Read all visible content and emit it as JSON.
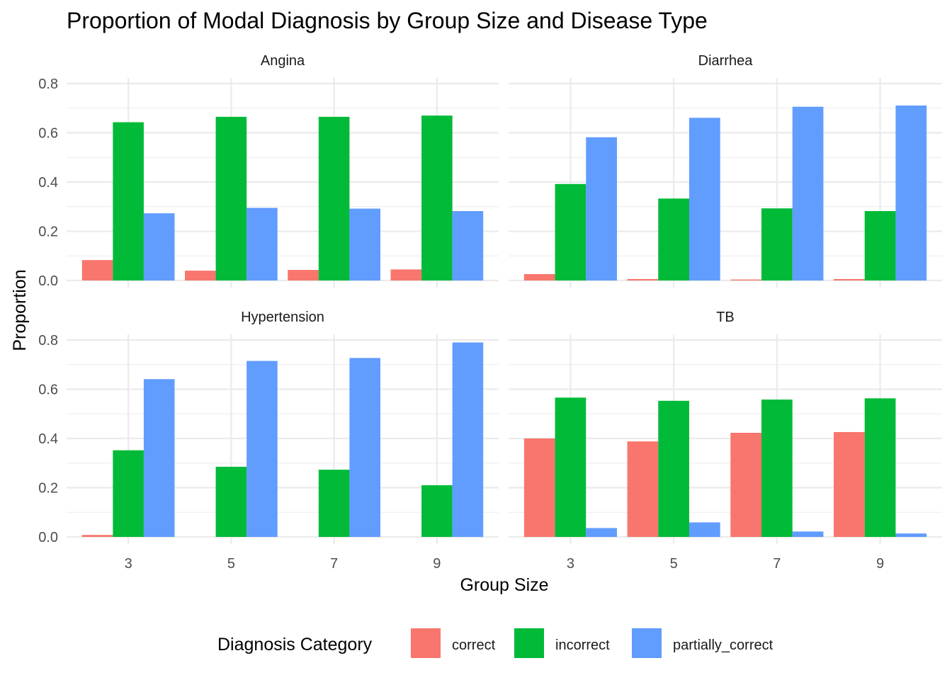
{
  "chart_data": {
    "type": "bar",
    "title": "Proportion of Modal Diagnosis by Group Size and Disease Type",
    "xlabel": "Group Size",
    "ylabel": "Proportion",
    "categories": [
      "3",
      "5",
      "7",
      "9"
    ],
    "ylim": [
      0,
      0.8
    ],
    "yticks": [
      "0.0",
      "0.2",
      "0.4",
      "0.6",
      "0.8"
    ],
    "grid": true,
    "legend": {
      "title": "Diagnosis Category",
      "position": "bottom",
      "entries": [
        {
          "label": "correct",
          "color": "#F8766D"
        },
        {
          "label": "incorrect",
          "color": "#00BA38"
        },
        {
          "label": "partially_correct",
          "color": "#619CFF"
        }
      ]
    },
    "facets": [
      {
        "label": "Angina",
        "series": [
          {
            "name": "correct",
            "values": [
              0.083,
              0.04,
              0.043,
              0.045
            ]
          },
          {
            "name": "incorrect",
            "values": [
              0.643,
              0.665,
              0.665,
              0.67
            ]
          },
          {
            "name": "partially_correct",
            "values": [
              0.273,
              0.295,
              0.292,
              0.282
            ]
          }
        ]
      },
      {
        "label": "Diarrhea",
        "series": [
          {
            "name": "correct",
            "values": [
              0.026,
              0.006,
              0.004,
              0.006
            ]
          },
          {
            "name": "incorrect",
            "values": [
              0.392,
              0.333,
              0.293,
              0.282
            ]
          },
          {
            "name": "partially_correct",
            "values": [
              0.582,
              0.661,
              0.706,
              0.711
            ]
          }
        ]
      },
      {
        "label": "Hypertension",
        "series": [
          {
            "name": "correct",
            "values": [
              0.008,
              0.0,
              0.0,
              0.0
            ]
          },
          {
            "name": "incorrect",
            "values": [
              0.352,
              0.285,
              0.273,
              0.21
            ]
          },
          {
            "name": "partially_correct",
            "values": [
              0.641,
              0.715,
              0.727,
              0.79
            ]
          }
        ]
      },
      {
        "label": "TB",
        "series": [
          {
            "name": "correct",
            "values": [
              0.4,
              0.388,
              0.423,
              0.426
            ]
          },
          {
            "name": "incorrect",
            "values": [
              0.566,
              0.553,
              0.558,
              0.563
            ]
          },
          {
            "name": "partially_correct",
            "values": [
              0.036,
              0.059,
              0.022,
              0.014
            ]
          }
        ]
      }
    ]
  }
}
